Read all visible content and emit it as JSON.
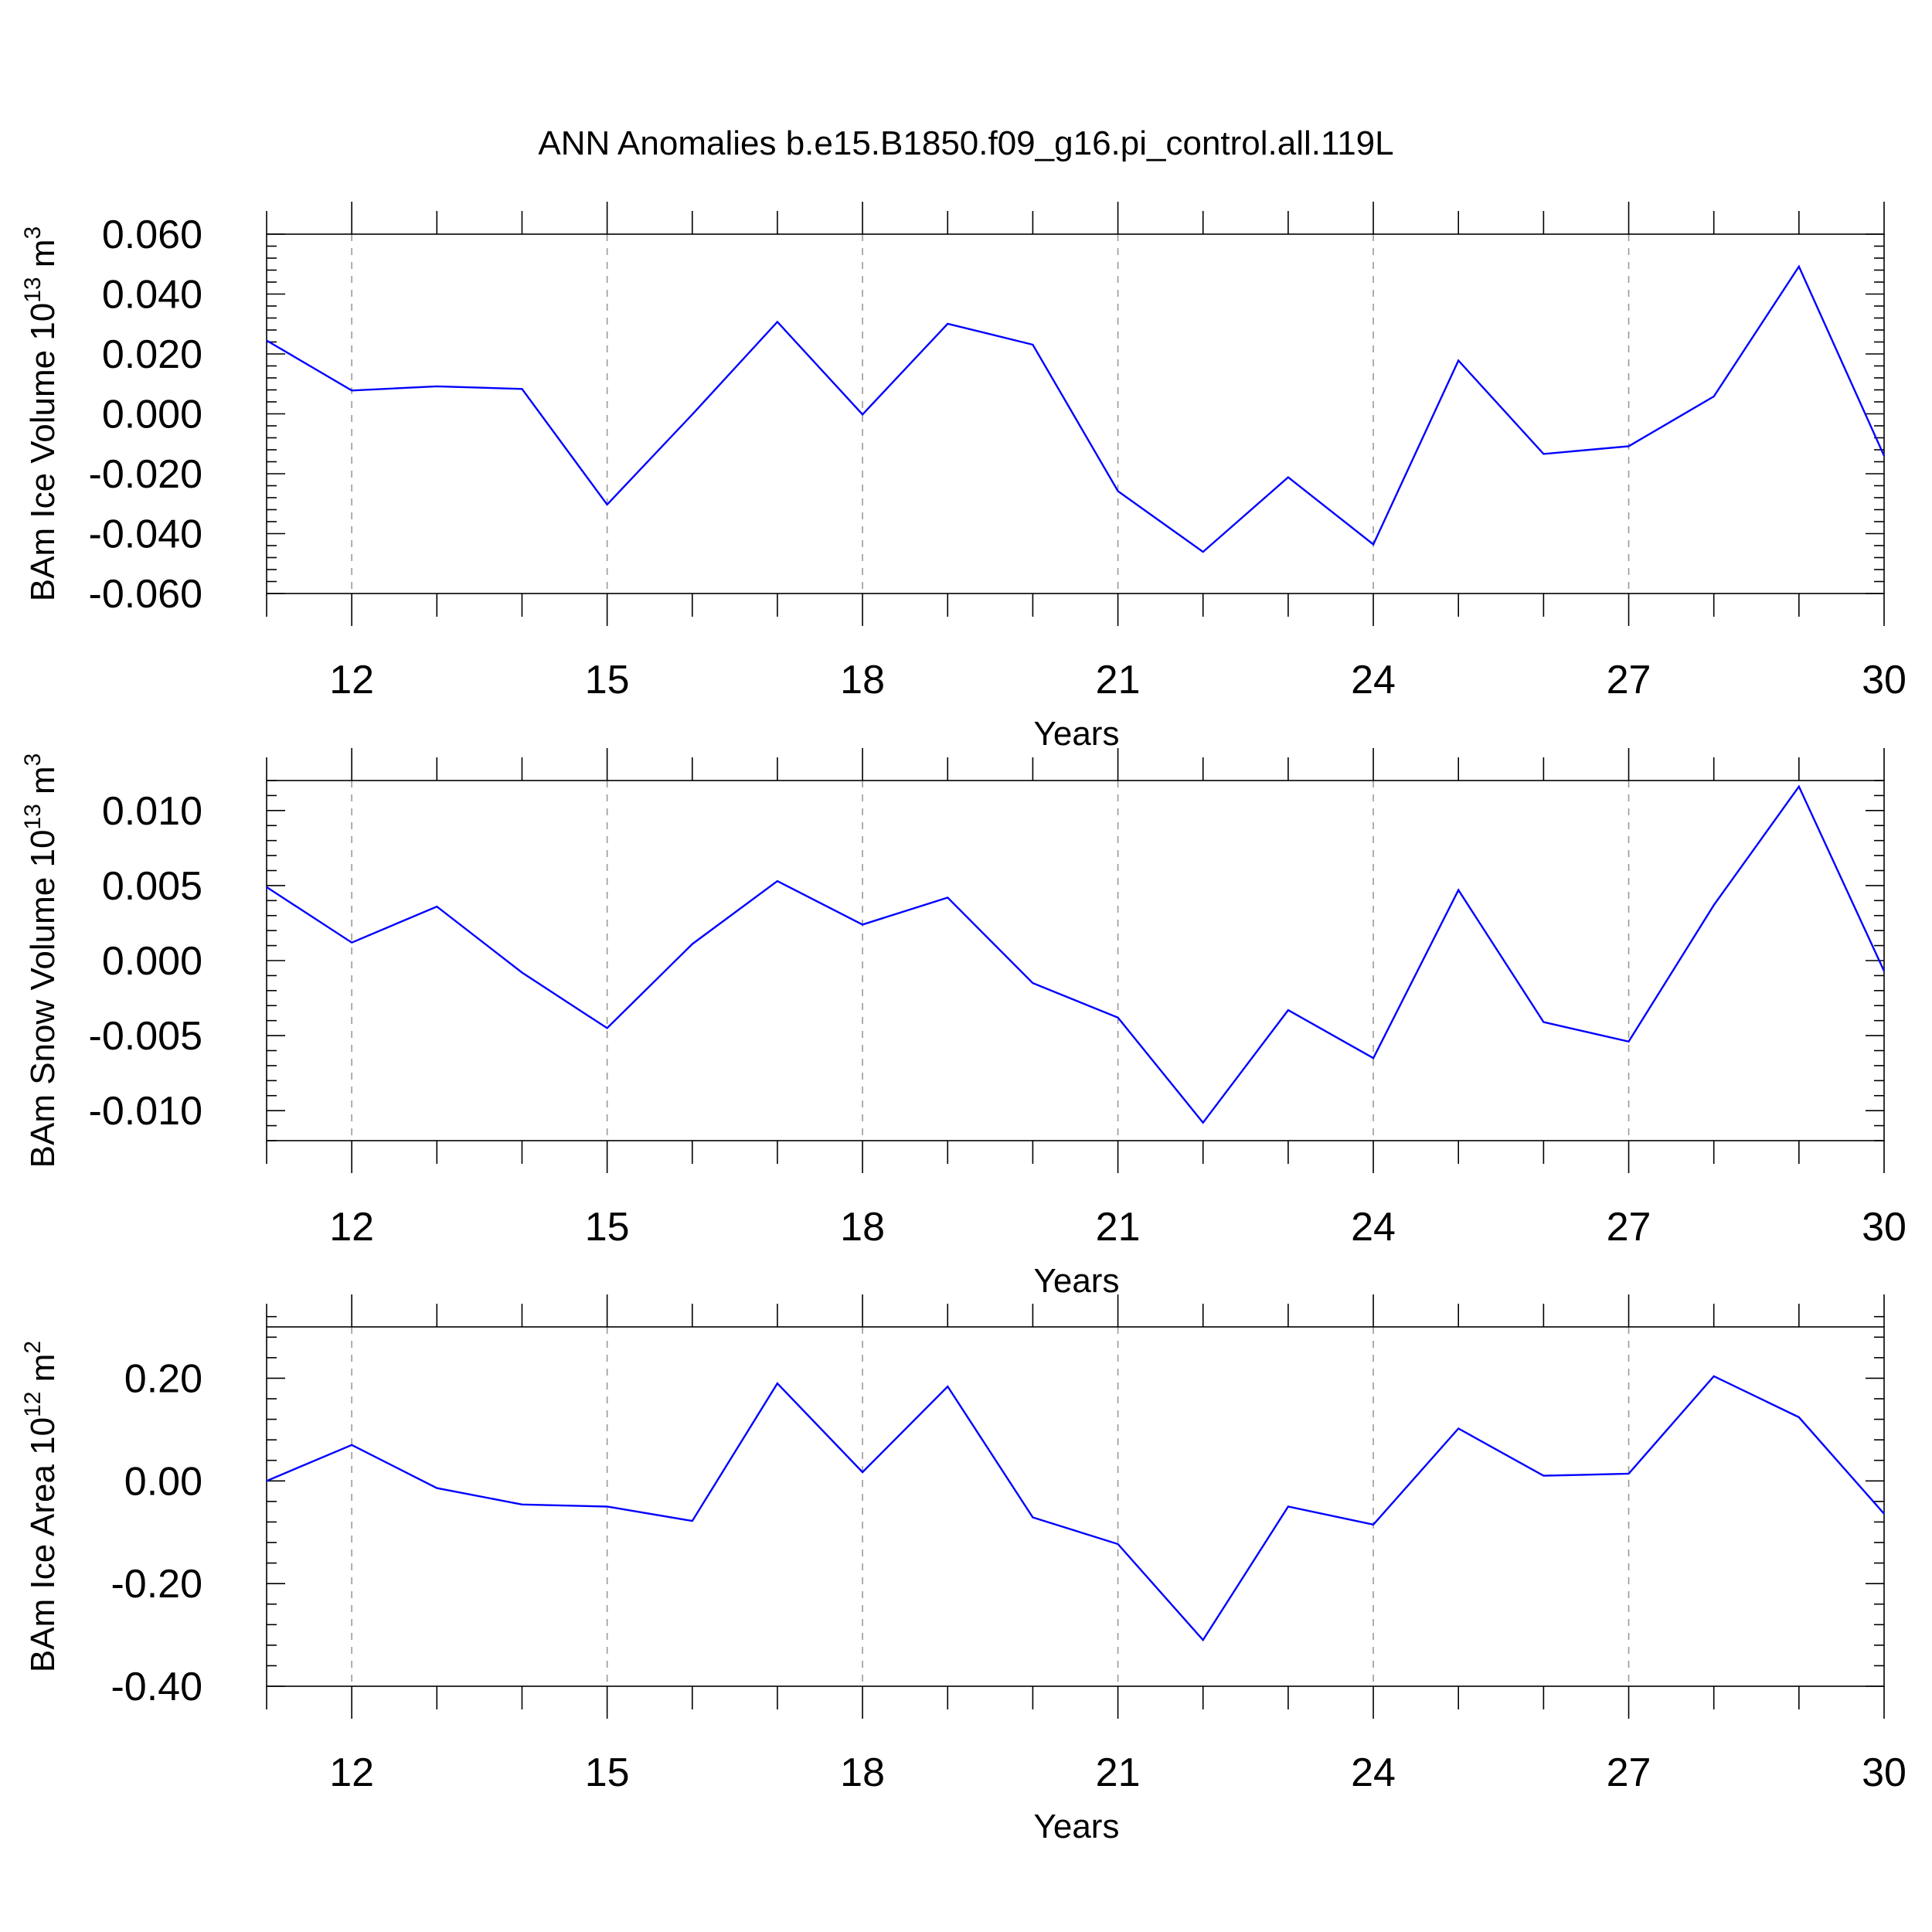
{
  "title": "ANN Anomalies b.e15.B1850.f09_g16.pi_control.all.119L",
  "series_color": "#0000ff",
  "chart_data": [
    {
      "type": "line",
      "xlabel": "Years",
      "ylabel_parts": {
        "prefix": "BAm Ice Volume 10",
        "exponent": "13",
        "unit": " m",
        "unit_exponent": "3"
      },
      "xlim": [
        11,
        30
      ],
      "ylim": [
        -0.06,
        0.06
      ],
      "xticks": [
        12,
        15,
        18,
        21,
        24,
        27,
        30
      ],
      "xtick_labels": [
        "12",
        "15",
        "18",
        "21",
        "24",
        "27",
        "30"
      ],
      "yticks": [
        0.06,
        0.04,
        0.02,
        0.0,
        -0.02,
        -0.04,
        -0.06
      ],
      "ytick_labels": [
        "0.060",
        "0.040",
        "0.020",
        "0.000",
        "-0.020",
        "-0.040",
        "-0.060"
      ],
      "grid": "vertical dashed at labeled x ticks",
      "x": [
        11,
        12,
        13,
        14,
        15,
        16,
        17,
        18,
        19,
        20,
        21,
        22,
        23,
        24,
        25,
        26,
        27,
        28,
        29,
        30
      ],
      "y": [
        0.0245,
        0.0078,
        0.0092,
        0.0083,
        -0.0303,
        -0.0002,
        0.0307,
        -0.0002,
        0.0301,
        0.0231,
        -0.0258,
        -0.0461,
        -0.0212,
        -0.0436,
        0.0178,
        -0.0134,
        -0.0108,
        0.0058,
        0.0492,
        -0.014
      ]
    },
    {
      "type": "line",
      "xlabel": "Years",
      "ylabel_parts": {
        "prefix": "BAm Snow Volume 10",
        "exponent": "13",
        "unit": " m",
        "unit_exponent": "3"
      },
      "xlim": [
        11,
        30
      ],
      "ylim": [
        -0.012,
        0.012
      ],
      "xticks": [
        12,
        15,
        18,
        21,
        24,
        27,
        30
      ],
      "xtick_labels": [
        "12",
        "15",
        "18",
        "21",
        "24",
        "27",
        "30"
      ],
      "yticks": [
        0.01,
        0.005,
        0.0,
        -0.005,
        -0.01
      ],
      "ytick_labels": [
        "0.010",
        "0.005",
        "0.000",
        "-0.005",
        "-0.010"
      ],
      "grid": "vertical dashed at labeled x ticks",
      "x": [
        11,
        12,
        13,
        14,
        15,
        16,
        17,
        18,
        19,
        20,
        21,
        22,
        23,
        24,
        25,
        26,
        27,
        28,
        29,
        30
      ],
      "y": [
        0.0049,
        0.0012,
        0.0036,
        -0.0008,
        -0.0045,
        0.0011,
        0.0053,
        0.0024,
        0.0042,
        -0.0015,
        -0.0038,
        -0.0108,
        -0.0033,
        -0.0065,
        0.0047,
        -0.0041,
        -0.0054,
        0.0037,
        0.0116,
        -0.0007
      ]
    },
    {
      "type": "line",
      "xlabel": "Years",
      "ylabel_parts": {
        "prefix": "BAm Ice Area 10",
        "exponent": "12",
        "unit": " m",
        "unit_exponent": "2"
      },
      "xlim": [
        11,
        30
      ],
      "ylim": [
        -0.4,
        0.3
      ],
      "xticks": [
        12,
        15,
        18,
        21,
        24,
        27,
        30
      ],
      "xtick_labels": [
        "12",
        "15",
        "18",
        "21",
        "24",
        "27",
        "30"
      ],
      "yticks": [
        0.2,
        0.0,
        -0.2,
        -0.4
      ],
      "ytick_labels": [
        "0.20",
        "0.00",
        "-0.20",
        "-0.40"
      ],
      "grid": "vertical dashed at labeled x ticks",
      "x": [
        11,
        12,
        13,
        14,
        15,
        16,
        17,
        18,
        19,
        20,
        21,
        22,
        23,
        24,
        25,
        26,
        27,
        28,
        29,
        30
      ],
      "y": [
        0.0,
        0.07,
        -0.014,
        -0.046,
        -0.05,
        -0.078,
        0.19,
        0.017,
        0.184,
        -0.071,
        -0.123,
        -0.31,
        -0.05,
        -0.085,
        0.102,
        0.01,
        0.014,
        0.204,
        0.124,
        -0.064
      ]
    }
  ]
}
